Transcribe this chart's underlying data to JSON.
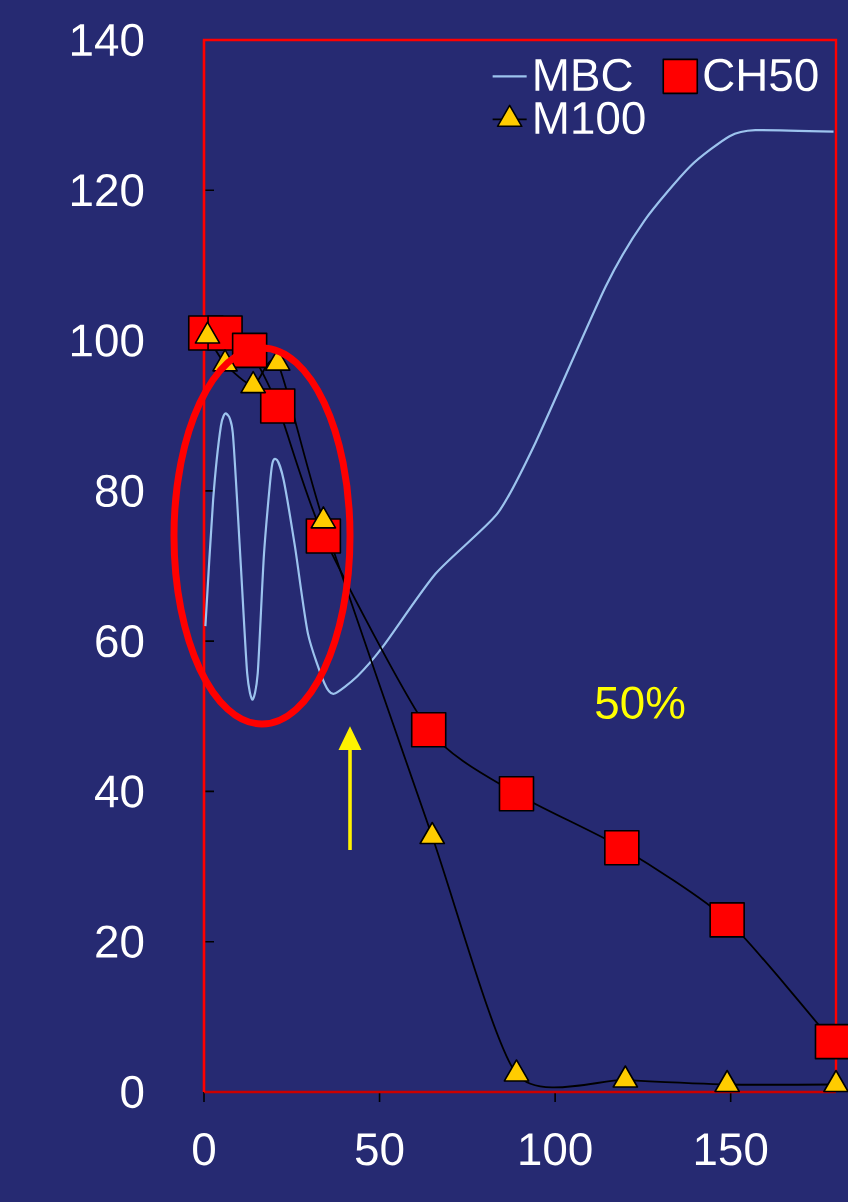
{
  "chart_data": {
    "type": "line",
    "xlim": [
      0,
      180
    ],
    "xticks": [
      0,
      50,
      100,
      150
    ],
    "ylim": [
      0,
      140
    ],
    "yticks": [
      0,
      20,
      40,
      60,
      80,
      100,
      120,
      140
    ],
    "grid": false,
    "legend": "top right",
    "line_style": "solid",
    "annotations": [
      "50%"
    ],
    "series": [
      {
        "name": "MBC",
        "color": "#9cc3ee",
        "marker": "none",
        "x": [
          0.4,
          2.6,
          4.8,
          6.3,
          8.2,
          10.4,
          12.3,
          13.8,
          15.3,
          17.1,
          19.3,
          20.8,
          22.7,
          25.9,
          29.6,
          34.3,
          37,
          43.6,
          51,
          66,
          83.6,
          94,
          114.4,
          125.5,
          138.5,
          149.7,
          157,
          179.3
        ],
        "values": [
          62,
          78.8,
          88.6,
          90.3,
          87.7,
          70.8,
          55.7,
          52.2,
          55.7,
          71.7,
          83.2,
          84.1,
          81.4,
          72.6,
          61,
          54.4,
          53,
          55.3,
          59.3,
          69,
          77,
          86,
          107.2,
          116,
          123.2,
          127.2,
          128,
          127.8
        ]
      },
      {
        "name": "CH50",
        "color": "#ff0000",
        "marker": "square",
        "x": [
          0.5,
          6,
          13,
          21,
          34,
          64,
          89,
          119,
          149,
          179
        ],
        "values": [
          101,
          101,
          98.7,
          91.3,
          74,
          48.2,
          39.7,
          32.5,
          22.9,
          6.7
        ]
      },
      {
        "name": "M100",
        "color": "#ffcc00",
        "marker": "triangle",
        "x": [
          1,
          6,
          14,
          21,
          34,
          65,
          89,
          120,
          149,
          180
        ],
        "values": [
          100.6,
          96.9,
          94,
          97,
          76,
          34,
          2.4,
          1.6,
          1,
          1
        ]
      }
    ]
  }
}
